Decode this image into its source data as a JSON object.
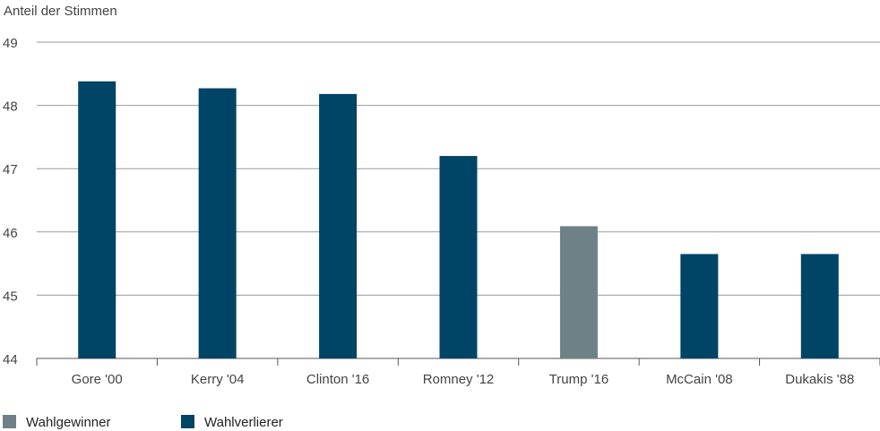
{
  "chart_data": {
    "type": "bar",
    "ylabel": "Anteil der Stimmen",
    "xlabel": "",
    "ylim": [
      44,
      49
    ],
    "yticks": [
      44,
      45,
      46,
      47,
      48,
      49
    ],
    "grid": true,
    "legend_position": "bottom-left",
    "categories": [
      "Gore '00",
      "Kerry '04",
      "Clinton '16",
      "Romney '12",
      "Trump '16",
      "McCain '08",
      "Dukakis '88"
    ],
    "values": [
      48.38,
      48.27,
      48.18,
      47.2,
      46.09,
      45.65,
      45.65
    ],
    "groups": [
      "Wahlverlierer",
      "Wahlverlierer",
      "Wahlverlierer",
      "Wahlverlierer",
      "Wahlgewinner",
      "Wahlverlierer",
      "Wahlverlierer"
    ],
    "legend": [
      {
        "label": "Wahlgewinner",
        "color": "#6e8187"
      },
      {
        "label": "Wahlverlierer",
        "color": "#004466"
      }
    ]
  }
}
